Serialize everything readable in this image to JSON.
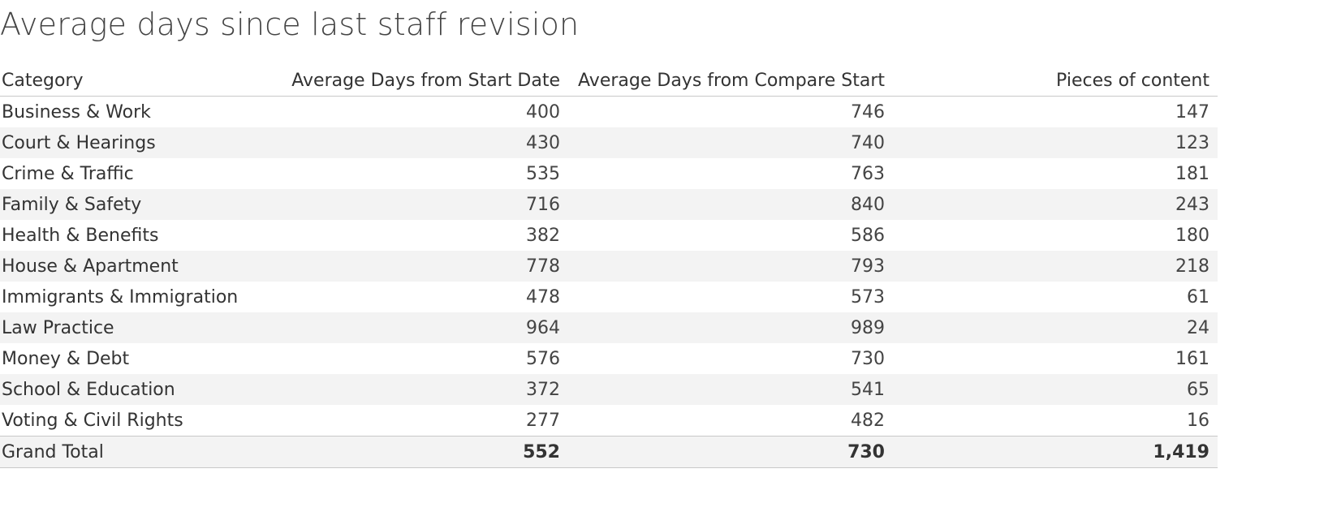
{
  "chart_data": {
    "type": "table",
    "title": "Average days since last staff revision",
    "columns": [
      "Category",
      "Average Days from Start Date",
      "Average Days from Compare Start",
      "Pieces of content"
    ],
    "rows": [
      {
        "category": "Business & Work",
        "avg_start": "400",
        "avg_compare": "746",
        "pieces": "147"
      },
      {
        "category": "Court & Hearings",
        "avg_start": "430",
        "avg_compare": "740",
        "pieces": "123"
      },
      {
        "category": "Crime & Traffic",
        "avg_start": "535",
        "avg_compare": "763",
        "pieces": "181"
      },
      {
        "category": "Family & Safety",
        "avg_start": "716",
        "avg_compare": "840",
        "pieces": "243"
      },
      {
        "category": "Health & Benefits",
        "avg_start": "382",
        "avg_compare": "586",
        "pieces": "180"
      },
      {
        "category": "House & Apartment",
        "avg_start": "778",
        "avg_compare": "793",
        "pieces": "218"
      },
      {
        "category": "Immigrants & Immigration",
        "avg_start": "478",
        "avg_compare": "573",
        "pieces": "61"
      },
      {
        "category": "Law Practice",
        "avg_start": "964",
        "avg_compare": "989",
        "pieces": "24"
      },
      {
        "category": "Money & Debt",
        "avg_start": "576",
        "avg_compare": "730",
        "pieces": "161"
      },
      {
        "category": "School & Education",
        "avg_start": "372",
        "avg_compare": "541",
        "pieces": "65"
      },
      {
        "category": "Voting & Civil Rights",
        "avg_start": "277",
        "avg_compare": "482",
        "pieces": "16"
      }
    ],
    "total": {
      "category": "Grand Total",
      "avg_start": "552",
      "avg_compare": "730",
      "pieces": "1,419"
    }
  }
}
